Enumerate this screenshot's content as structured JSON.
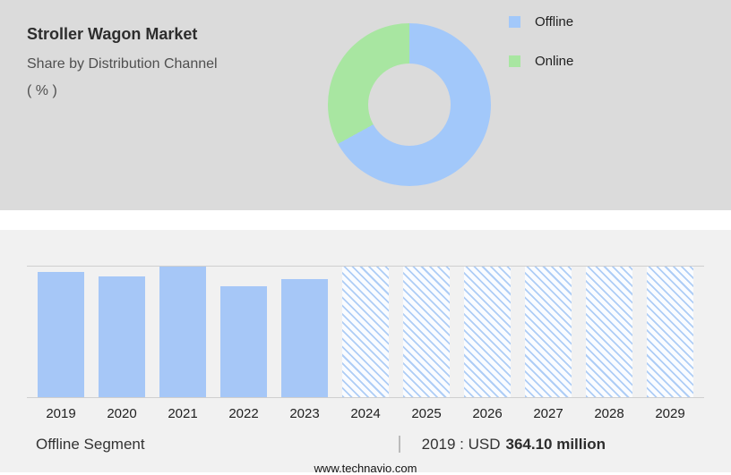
{
  "header": {
    "title": "Stroller Wagon Market",
    "subtitle": "Share by Distribution Channel",
    "unit": "( % )"
  },
  "chart_data": [
    {
      "type": "pie",
      "donut": true,
      "title": "Stroller Wagon Market — Share by Distribution Channel (%)",
      "labels": [
        "Offline",
        "Online"
      ],
      "values": [
        67,
        33
      ],
      "colors": [
        "#a2c8fa",
        "#a8e6a1"
      ],
      "legend_position": "top-right",
      "note": "slice values estimated from arc angles; no numeric labels shown"
    },
    {
      "type": "bar",
      "title": "Offline Segment, 2019-2029",
      "categories": [
        "2019",
        "2020",
        "2021",
        "2022",
        "2023",
        "2024",
        "2025",
        "2026",
        "2027",
        "2028",
        "2029"
      ],
      "values_relative": [
        0.96,
        0.925,
        1.0,
        0.85,
        0.905,
        1.0,
        1.0,
        1.0,
        1.0,
        1.0,
        1.0
      ],
      "styles": [
        "solid",
        "solid",
        "solid",
        "solid",
        "solid",
        "hatched",
        "hatched",
        "hatched",
        "hatched",
        "hatched",
        "hatched"
      ],
      "bar_color": "#a6c7f7",
      "ylim": [
        0,
        1
      ],
      "grid": false,
      "known_value": {
        "year": "2019",
        "label": "USD 364.10 million"
      },
      "note": "historical bars solid, forecast bars hatched; heights estimated relative to plot frame"
    }
  ],
  "footer": {
    "segment": "Offline Segment",
    "separator": "|",
    "value_prefix": "2019 : USD",
    "value_bold": "364.10 million",
    "website": "www.technavio.com"
  }
}
